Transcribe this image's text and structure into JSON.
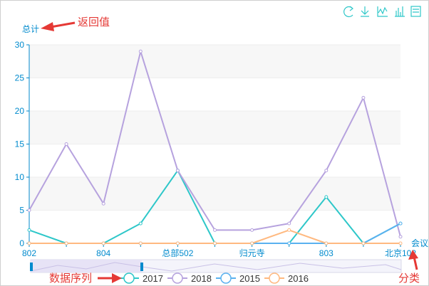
{
  "toolbox": {
    "icons": [
      "restore-icon",
      "download-icon",
      "line-chart-icon",
      "bar-chart-icon",
      "data-view-icon"
    ]
  },
  "annotations": {
    "return_value": "返回值",
    "data_series": "数据序列",
    "category": "分类"
  },
  "colors": {
    "2017": "#2ec7c9",
    "2018": "#b6a2de",
    "2015": "#5ab1ef",
    "2016": "#ffb980",
    "axis": "#008acd",
    "arrow": "#e53935",
    "split_area": "#f7f7f7"
  },
  "chart_data": {
    "type": "line",
    "ylabel": "总计",
    "xlabel": "会议",
    "ylim": [
      0,
      30
    ],
    "yticks": [
      0,
      5,
      10,
      15,
      20,
      25,
      30
    ],
    "categories": [
      "802",
      "",
      "804",
      "",
      "总部502",
      "",
      "归元寺",
      "",
      "803",
      "",
      "北京102"
    ],
    "tick_labels": [
      "802",
      "804",
      "总部502",
      "归元寺",
      "803",
      "北京102"
    ],
    "grid": "horizontal",
    "legend_position": "bottom",
    "series": [
      {
        "name": "2017",
        "values": [
          2,
          0,
          0,
          3,
          11,
          0,
          0,
          0,
          7,
          0,
          3
        ]
      },
      {
        "name": "2018",
        "values": [
          5,
          15,
          6,
          29,
          11,
          2,
          2,
          3,
          11,
          22,
          1
        ]
      },
      {
        "name": "2015",
        "values": [
          0,
          0,
          0,
          0,
          0,
          0,
          0,
          0,
          0,
          0,
          3
        ]
      },
      {
        "name": "2016",
        "values": [
          0,
          0,
          0,
          0,
          0,
          0,
          0,
          2,
          0,
          0,
          0
        ]
      }
    ]
  }
}
